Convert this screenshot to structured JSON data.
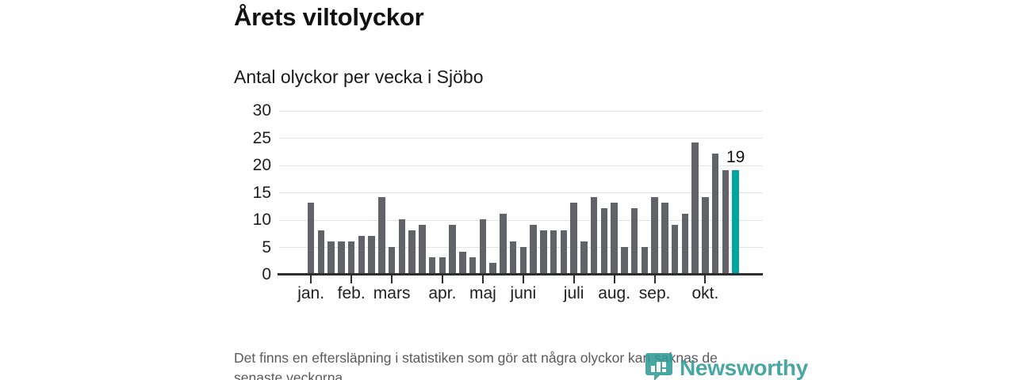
{
  "header": {
    "title": "Årets viltolyckor",
    "subtitle": "Antal olyckor per vecka i Sjöbo"
  },
  "chart_data": {
    "type": "bar",
    "title": "Årets viltolyckor",
    "subtitle": "Antal olyckor per vecka i Sjöbo",
    "x_unit": "vecka",
    "values": [
      13,
      8,
      6,
      6,
      6,
      7,
      7,
      14,
      5,
      10,
      8,
      9,
      3,
      3,
      9,
      4,
      3,
      10,
      2,
      11,
      6,
      5,
      9,
      8,
      8,
      8,
      13,
      6,
      14,
      12,
      13,
      5,
      12,
      5,
      14,
      13,
      9,
      11,
      24,
      14,
      22,
      19,
      19
    ],
    "highlight_index": 42,
    "annotation_label": "19",
    "ylim": [
      0,
      30
    ],
    "y_ticks": [
      0,
      5,
      10,
      15,
      20,
      25,
      30
    ],
    "x_tick_labels": [
      "jan.",
      "feb.",
      "mars",
      "apr.",
      "maj",
      "juni",
      "juli",
      "aug.",
      "sep.",
      "okt."
    ],
    "x_tick_positions": [
      0,
      4,
      8,
      13,
      17,
      21,
      26,
      30,
      34,
      39
    ],
    "grid": "horizontal",
    "legend": "none",
    "colors": {
      "bar": "#626269",
      "highlight": "#00a69d",
      "grid": "#e2e2e2",
      "axis": "#2e2e2e"
    }
  },
  "footer": {
    "note_line1": "Det finns en eftersläpning i statistiken som gör att några olyckor kan saknas de",
    "note_line2": "senaste veckorna.",
    "logo_text": "Newsworthy",
    "logo_icon": "newsworthy-pin-barchart-icon",
    "logo_color": "#2f9b96"
  }
}
